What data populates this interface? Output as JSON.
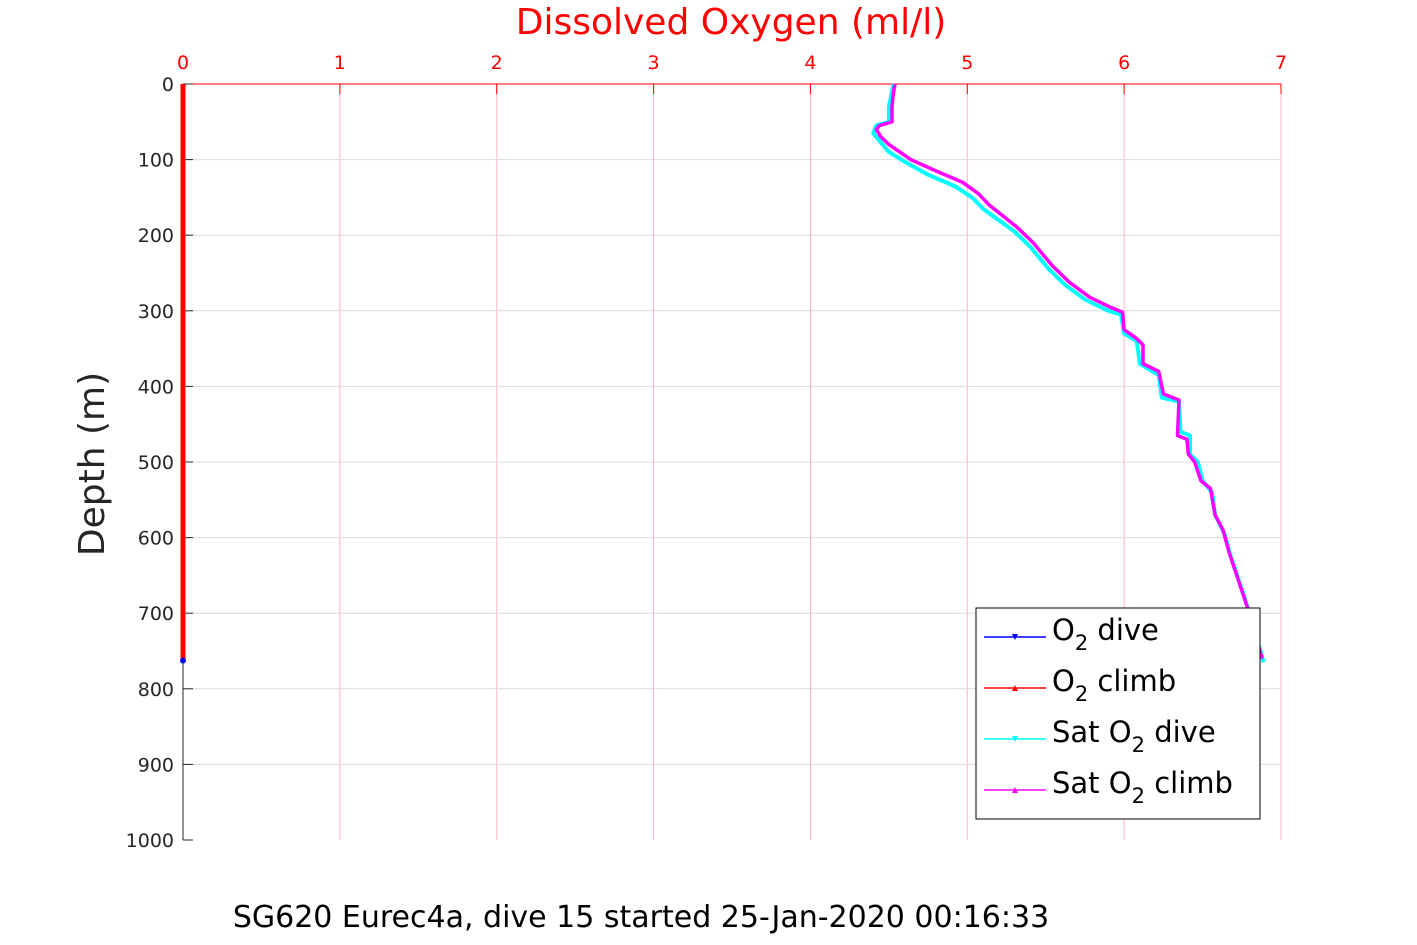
{
  "chart_data": {
    "type": "line",
    "title": "Dissolved Oxygen (ml/l)",
    "ylabel": "Depth (m)",
    "xlabel": "",
    "caption": "SG620 Eurec4a, dive 15 started 25-Jan-2020 00:16:33",
    "xlim": [
      0,
      7
    ],
    "ylim": [
      0,
      1000
    ],
    "y_reversed": true,
    "x_axis_position": "top",
    "xticks": [
      "0",
      "1",
      "2",
      "3",
      "4",
      "5",
      "6",
      "7"
    ],
    "yticks": [
      "0",
      "100",
      "200",
      "300",
      "400",
      "500",
      "600",
      "700",
      "800",
      "900",
      "1000"
    ],
    "grid": true,
    "legend_position": "bottom-right",
    "colors": {
      "o2_dive": "#0000ff",
      "o2_climb": "#ff0000",
      "sat_dive": "#00ffff",
      "sat_climb": "#ff00ff",
      "grid": "#ffb6c1",
      "x_axis": "#ff0000",
      "y_axis": "#262626"
    },
    "series": [
      {
        "name": "O2 dive",
        "legend": {
          "pre": "O",
          "sub": "2",
          "post": " dive"
        },
        "color": "#0000ff",
        "marker": "triangle-down",
        "points": [
          [
            0,
            0
          ],
          [
            0,
            760
          ]
        ]
      },
      {
        "name": "O2 climb",
        "legend": {
          "pre": "O",
          "sub": "2",
          "post": " climb"
        },
        "color": "#ff0000",
        "marker": "triangle-up",
        "points": [
          [
            0,
            0
          ],
          [
            0,
            760
          ]
        ]
      },
      {
        "name": "Sat O2 dive",
        "legend": {
          "pre": "Sat O",
          "sub": "2",
          "post": " dive"
        },
        "color": "#00ffff",
        "marker": "triangle-down",
        "points": [
          [
            4.53,
            0
          ],
          [
            4.52,
            10
          ],
          [
            4.5,
            30
          ],
          [
            4.5,
            50
          ],
          [
            4.42,
            55
          ],
          [
            4.4,
            65
          ],
          [
            4.44,
            75
          ],
          [
            4.5,
            90
          ],
          [
            4.62,
            105
          ],
          [
            4.75,
            120
          ],
          [
            4.92,
            135
          ],
          [
            5.03,
            150
          ],
          [
            5.1,
            165
          ],
          [
            5.2,
            180
          ],
          [
            5.3,
            195
          ],
          [
            5.4,
            215
          ],
          [
            5.52,
            245
          ],
          [
            5.62,
            265
          ],
          [
            5.75,
            285
          ],
          [
            5.9,
            300
          ],
          [
            5.98,
            305
          ],
          [
            6.0,
            330
          ],
          [
            6.08,
            340
          ],
          [
            6.1,
            370
          ],
          [
            6.22,
            385
          ],
          [
            6.24,
            415
          ],
          [
            6.35,
            420
          ],
          [
            6.36,
            460
          ],
          [
            6.42,
            465
          ],
          [
            6.42,
            490
          ],
          [
            6.47,
            500
          ],
          [
            6.5,
            525
          ],
          [
            6.56,
            540
          ],
          [
            6.58,
            570
          ],
          [
            6.64,
            595
          ],
          [
            6.68,
            625
          ],
          [
            6.72,
            650
          ],
          [
            6.76,
            675
          ],
          [
            6.8,
            700
          ],
          [
            6.84,
            730
          ],
          [
            6.89,
            765
          ]
        ]
      },
      {
        "name": "Sat O2 climb",
        "legend": {
          "pre": "Sat O",
          "sub": "2",
          "post": " climb"
        },
        "color": "#ff00ff",
        "marker": "triangle-up",
        "points": [
          [
            4.54,
            0
          ],
          [
            4.53,
            10
          ],
          [
            4.52,
            30
          ],
          [
            4.52,
            50
          ],
          [
            4.44,
            55
          ],
          [
            4.42,
            60
          ],
          [
            4.45,
            70
          ],
          [
            4.5,
            80
          ],
          [
            4.64,
            100
          ],
          [
            4.8,
            115
          ],
          [
            4.97,
            130
          ],
          [
            5.07,
            145
          ],
          [
            5.14,
            160
          ],
          [
            5.23,
            175
          ],
          [
            5.32,
            190
          ],
          [
            5.42,
            210
          ],
          [
            5.54,
            240
          ],
          [
            5.65,
            262
          ],
          [
            5.78,
            282
          ],
          [
            5.92,
            296
          ],
          [
            5.99,
            302
          ],
          [
            6.0,
            325
          ],
          [
            6.07,
            335
          ],
          [
            6.12,
            345
          ],
          [
            6.12,
            370
          ],
          [
            6.22,
            380
          ],
          [
            6.25,
            410
          ],
          [
            6.35,
            418
          ],
          [
            6.34,
            465
          ],
          [
            6.4,
            470
          ],
          [
            6.41,
            490
          ],
          [
            6.45,
            500
          ],
          [
            6.49,
            525
          ],
          [
            6.55,
            535
          ],
          [
            6.58,
            570
          ],
          [
            6.63,
            590
          ],
          [
            6.67,
            620
          ],
          [
            6.71,
            645
          ],
          [
            6.75,
            670
          ],
          [
            6.79,
            695
          ],
          [
            6.83,
            725
          ],
          [
            6.88,
            760
          ]
        ]
      }
    ]
  }
}
